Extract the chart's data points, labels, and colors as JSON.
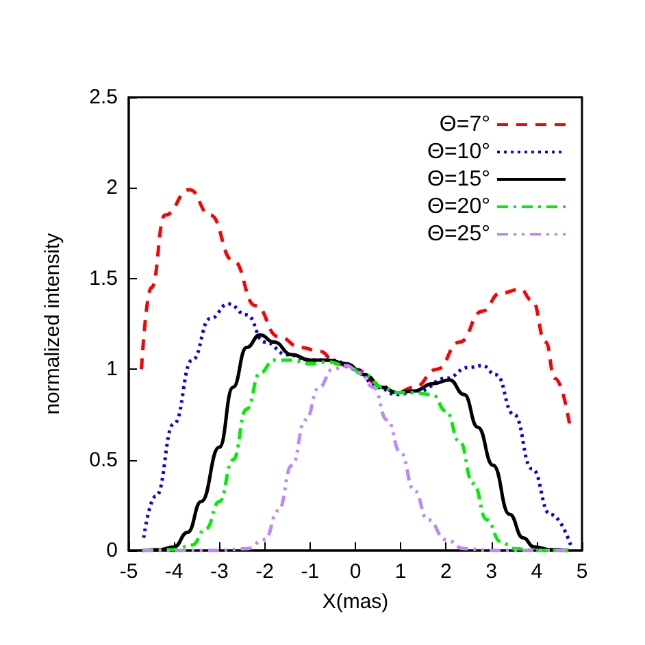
{
  "chart_data": {
    "type": "line",
    "xlabel": "X(mas)",
    "ylabel": "normalized intensity",
    "xlim": [
      -5,
      5
    ],
    "xticks": [
      -5,
      -4,
      -3,
      -2,
      -1,
      0,
      1,
      2,
      3,
      4,
      5
    ],
    "ylim": [
      0,
      2.5
    ],
    "yticks": [
      0,
      0.5,
      1,
      1.5,
      2,
      2.5
    ],
    "grid": false,
    "legend": "top right",
    "marker": "none",
    "series": [
      {
        "name": "Θ=7°",
        "color": "#ff0000",
        "line_style": "dashed",
        "x": [
          -4.72,
          -4.5,
          -4.2,
          -3.66,
          -3.2,
          -2.7,
          -2.2,
          -1.7,
          -1.2,
          -0.8,
          -0.4,
          0,
          0.5,
          0.9,
          1.3,
          1.8,
          2.3,
          2.8,
          3.2,
          3.64,
          3.9,
          4.2,
          4.4,
          4.73
        ],
        "values": [
          1.0,
          1.45,
          1.85,
          1.99,
          1.85,
          1.6,
          1.35,
          1.18,
          1.12,
          1.1,
          1.03,
          1.0,
          0.92,
          0.87,
          0.9,
          1.0,
          1.15,
          1.32,
          1.42,
          1.44,
          1.38,
          1.15,
          0.95,
          0.69
        ]
      },
      {
        "name": "Θ=10°",
        "color": "#0000ff",
        "line_style": "dotted",
        "x": [
          -4.67,
          -4.4,
          -4.0,
          -3.6,
          -3.2,
          -2.8,
          -2.4,
          -2.0,
          -1.5,
          -1,
          -0.5,
          0,
          0.5,
          0.9,
          1.4,
          2.0,
          2.5,
          2.8,
          3.1,
          3.5,
          3.9,
          4.3,
          4.75
        ],
        "values": [
          0.07,
          0.3,
          0.7,
          1.05,
          1.28,
          1.36,
          1.3,
          1.15,
          1.08,
          1.05,
          1.05,
          1.0,
          0.9,
          0.86,
          0.88,
          0.95,
          1.01,
          1.02,
          0.97,
          0.75,
          0.45,
          0.2,
          0.03
        ]
      },
      {
        "name": "Θ=15°",
        "color": "#000000",
        "line_style": "solid",
        "x": [
          -4.7,
          -4.3,
          -4.0,
          -3.7,
          -3.4,
          -3.0,
          -2.7,
          -2.4,
          -2.1,
          -1.8,
          -1.4,
          -1.0,
          -0.6,
          -0.2,
          0.2,
          0.6,
          0.92,
          1.3,
          1.7,
          2.08,
          2.4,
          2.7,
          3.04,
          3.4,
          3.7,
          3.94,
          4.3,
          4.7
        ],
        "values": [
          0,
          0.005,
          0.02,
          0.1,
          0.27,
          0.57,
          0.9,
          1.12,
          1.19,
          1.15,
          1.08,
          1.05,
          1.05,
          1.03,
          0.97,
          0.9,
          0.87,
          0.88,
          0.92,
          0.94,
          0.86,
          0.68,
          0.47,
          0.2,
          0.07,
          0.02,
          0.005,
          0
        ]
      },
      {
        "name": "Θ=20°",
        "color": "#00ee00",
        "line_style": "dashdot",
        "x": [
          -4.7,
          -4.0,
          -3.6,
          -3.3,
          -3.0,
          -2.7,
          -2.4,
          -2.1,
          -1.8,
          -1.4,
          -1.0,
          -0.6,
          -0.2,
          0.2,
          0.6,
          0.9,
          1.3,
          1.7,
          2.0,
          2.3,
          2.6,
          2.9,
          3.2,
          3.5,
          4.0,
          4.7
        ],
        "values": [
          0,
          0.005,
          0.03,
          0.12,
          0.27,
          0.5,
          0.78,
          0.98,
          1.05,
          1.05,
          1.03,
          1.04,
          1.02,
          0.97,
          0.9,
          0.87,
          0.87,
          0.86,
          0.77,
          0.6,
          0.37,
          0.17,
          0.05,
          0.01,
          0,
          0
        ]
      },
      {
        "name": "Θ=25°",
        "color": "#bb88ff",
        "line_style": "dashdotdot",
        "x": [
          -4.7,
          -3,
          -2.4,
          -2.0,
          -1.7,
          -1.4,
          -1.1,
          -0.8,
          -0.5,
          -0.2,
          0.1,
          0.4,
          0.7,
          1.0,
          1.3,
          1.6,
          2.0,
          2.4,
          3,
          4.7
        ],
        "values": [
          0,
          0,
          0.01,
          0.06,
          0.22,
          0.47,
          0.72,
          0.9,
          1.0,
          1.02,
          0.98,
          0.9,
          0.72,
          0.54,
          0.33,
          0.17,
          0.06,
          0.01,
          0,
          0
        ]
      }
    ]
  }
}
